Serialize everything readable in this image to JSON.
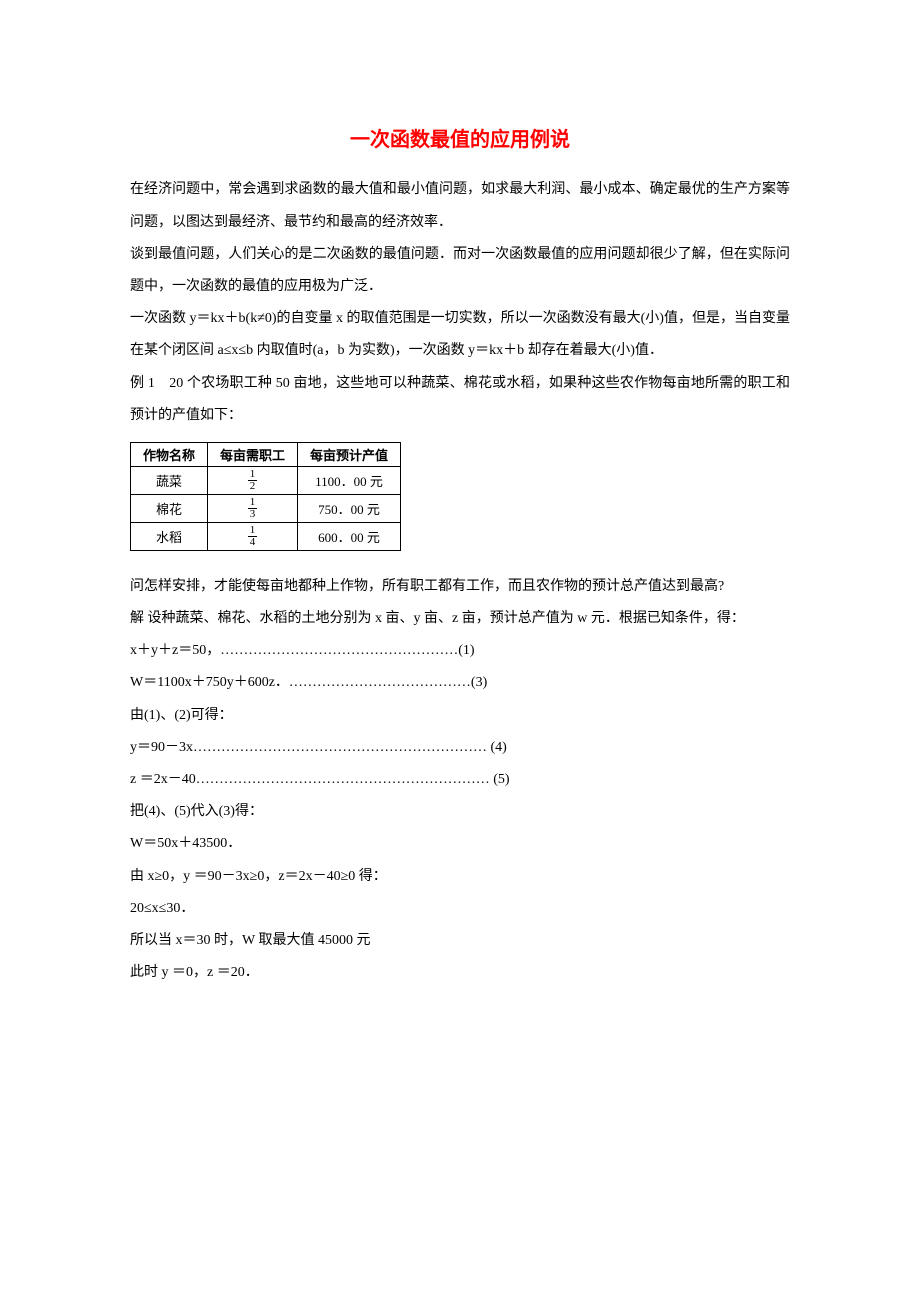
{
  "title": "一次函数最值的应用例说",
  "paragraphs": {
    "p1": "在经济问题中，常会遇到求函数的最大值和最小值问题，如求最大利润、最小成本、确定最优的生产方案等问题，以图达到最经济、最节约和最高的经济效率．",
    "p2": "谈到最值问题，人们关心的是二次函数的最值问题．而对一次函数最值的应用问题却很少了解，但在实际问题中，一次函数的最值的应用极为广泛．",
    "p3": "一次函数 y＝kx＋b(k≠0)的自变量 x 的取值范围是一切实数，所以一次函数没有最大(小)值，但是，当自变量在某个闭区间 a≤x≤b 内取值时(a，b 为实数)，一次函数 y＝kx＋b 却存在着最大(小)值．",
    "p4": "例 1　20 个农场职工种 50 亩地，这些地可以种蔬菜、棉花或水稻，如果种这些农作物每亩地所需的职工和预计的产值如下：",
    "p5": "问怎样安排，才能使每亩地都种上作物，所有职工都有工作，而且农作物的预计总产值达到最高?",
    "p6": "解 设种蔬菜、棉花、水稻的土地分别为 x 亩、y 亩、z 亩，预计总产值为 w 元．根据已知条件，得：",
    "eq1": "x＋y＋z＝50，……………………………………………(1)",
    "eq3": "W＝1100x＋750y＋600z．…………………………………(3)",
    "p7": "由(1)、(2)可得：",
    "eq4": "y＝90－3x……………………………………………………… (4)",
    "eq5": "z ＝2x－40……………………………………………………… (5)",
    "p8": "把(4)、(5)代入(3)得：",
    "eq6": "W＝50x＋43500．",
    "p9": "由 x≥0，y ＝90－3x≥0，z＝2x－40≥0 得：",
    "eq7": "20≤x≤30．",
    "p10": "所以当 x＝30 时，W 取最大值 45000 元",
    "p11": "此时 y ＝0，z ＝20．"
  },
  "table": {
    "headers": {
      "c1": "作物名称",
      "c2": "每亩需职工",
      "c3": "每亩预计产值"
    },
    "rows": [
      {
        "name": "蔬菜",
        "num": "1",
        "den": "2",
        "value": "1100．00 元"
      },
      {
        "name": "棉花",
        "num": "1",
        "den": "3",
        "value": "750．00 元"
      },
      {
        "name": "水稻",
        "num": "1",
        "den": "4",
        "value": "600．00 元"
      }
    ]
  }
}
